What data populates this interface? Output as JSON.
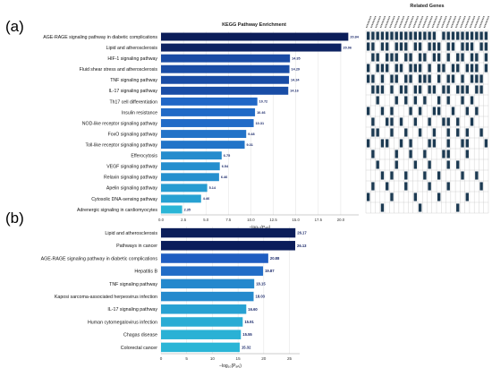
{
  "panel_labels": [
    "(a)",
    "(b)"
  ],
  "colors": {
    "bar_dark": "#0b1d59",
    "bar_mid": "#1f5fc4",
    "bar_light": "#2ab5d6",
    "heatmap_fill": "#1c3a52",
    "heatmap_grid": "#c8c8c8"
  },
  "chart_data": [
    {
      "type": "bar",
      "orientation": "horizontal",
      "title": "KEGG Pathway Enrichment",
      "xlabel": "−log₁₀(Pₐₙⱼ)",
      "xlim": [
        0,
        22
      ],
      "xticks": [
        "0.0",
        "2.5",
        "5.0",
        "7.5",
        "10.0",
        "12.5",
        "15.0",
        "17.5",
        "20.0"
      ],
      "tick_values": [
        0,
        2.5,
        5,
        7.5,
        10,
        12.5,
        15,
        17.5,
        20
      ],
      "grid": true,
      "categories": [
        "AGE-RAGE signaling pathway in diabetic complications",
        "Lipid and atherosclerosis",
        "HIF-1 signaling pathway",
        "Fluid shear stress and atherosclerosis",
        "TNF signaling pathway",
        "IL-17 signaling pathway",
        "Th17 cell differentiation",
        "Insulin resistance",
        "NOD-like receptor signaling pathway",
        "FoxO signaling pathway",
        "Toll-like receptor signaling pathway",
        "Efferocytosis",
        "VEGF signaling pathway",
        "Relaxin signaling pathway",
        "Apelin signaling pathway",
        "Cytosolic DNA-sensing pathway",
        "Adrenergic signaling in cardiomyocytes"
      ],
      "values": [
        20.84,
        20.06,
        14.35,
        14.29,
        14.24,
        14.16,
        10.72,
        10.46,
        10.31,
        9.48,
        9.31,
        6.75,
        6.54,
        6.46,
        5.14,
        4.46,
        2.35
      ],
      "labels": [
        "20.84",
        "20.06",
        "14.35",
        "14.29",
        "14.24",
        "14.16",
        "10.72",
        "10.46",
        "10.31",
        "9.48",
        "9.31",
        "6.75",
        "6.54",
        "6.46",
        "5.14",
        "4.46",
        "2.35"
      ]
    },
    {
      "type": "heatmap",
      "title": "Related Genes",
      "rows": 17,
      "columns": 26,
      "cells": [
        [
          1,
          1,
          1,
          1,
          1,
          1,
          1,
          1,
          1,
          1,
          1,
          1,
          1,
          1,
          1,
          0,
          1,
          1,
          1,
          1,
          1,
          1,
          1,
          1,
          1,
          1
        ],
        [
          1,
          1,
          0,
          1,
          1,
          0,
          1,
          1,
          1,
          0,
          1,
          1,
          0,
          1,
          1,
          1,
          0,
          1,
          1,
          0,
          1,
          1,
          1,
          0,
          1,
          1
        ],
        [
          0,
          1,
          1,
          0,
          1,
          1,
          1,
          0,
          1,
          1,
          0,
          1,
          1,
          0,
          1,
          1,
          0,
          1,
          0,
          1,
          1,
          0,
          1,
          1,
          0,
          1
        ],
        [
          1,
          0,
          1,
          1,
          1,
          0,
          1,
          1,
          0,
          1,
          1,
          1,
          0,
          1,
          0,
          1,
          1,
          0,
          1,
          1,
          0,
          1,
          1,
          1,
          0,
          1
        ],
        [
          1,
          1,
          0,
          1,
          0,
          1,
          1,
          0,
          1,
          1,
          0,
          1,
          1,
          1,
          0,
          1,
          0,
          1,
          1,
          0,
          1,
          0,
          1,
          1,
          1,
          0
        ],
        [
          0,
          1,
          1,
          1,
          0,
          1,
          0,
          1,
          1,
          0,
          1,
          1,
          0,
          1,
          1,
          0,
          1,
          1,
          0,
          1,
          1,
          1,
          0,
          1,
          1,
          0
        ],
        [
          0,
          0,
          1,
          0,
          0,
          0,
          1,
          0,
          1,
          0,
          1,
          0,
          1,
          0,
          0,
          1,
          0,
          1,
          0,
          0,
          1,
          0,
          1,
          0,
          0,
          0
        ],
        [
          1,
          0,
          0,
          1,
          0,
          1,
          0,
          0,
          0,
          1,
          0,
          1,
          0,
          0,
          1,
          1,
          0,
          0,
          1,
          0,
          0,
          1,
          0,
          1,
          0,
          0
        ],
        [
          0,
          1,
          0,
          0,
          1,
          1,
          0,
          1,
          0,
          0,
          1,
          0,
          0,
          1,
          0,
          0,
          1,
          1,
          0,
          1,
          0,
          0,
          1,
          0,
          0,
          0
        ],
        [
          0,
          1,
          1,
          0,
          0,
          1,
          0,
          0,
          1,
          0,
          0,
          1,
          0,
          0,
          1,
          0,
          0,
          1,
          0,
          1,
          0,
          1,
          0,
          0,
          1,
          0
        ],
        [
          1,
          0,
          0,
          1,
          1,
          0,
          0,
          1,
          0,
          1,
          0,
          0,
          0,
          1,
          1,
          0,
          0,
          1,
          0,
          0,
          1,
          1,
          0,
          0,
          0,
          1
        ],
        [
          0,
          1,
          0,
          0,
          0,
          0,
          1,
          0,
          0,
          1,
          0,
          0,
          1,
          0,
          0,
          0,
          1,
          1,
          0,
          0,
          0,
          1,
          0,
          0,
          0,
          0
        ],
        [
          0,
          0,
          1,
          0,
          0,
          0,
          1,
          0,
          0,
          0,
          1,
          0,
          0,
          1,
          0,
          0,
          0,
          1,
          0,
          1,
          0,
          0,
          0,
          0,
          0,
          0
        ],
        [
          0,
          0,
          0,
          1,
          0,
          1,
          0,
          0,
          1,
          0,
          0,
          0,
          1,
          0,
          0,
          1,
          0,
          0,
          0,
          0,
          1,
          0,
          0,
          1,
          0,
          0
        ],
        [
          0,
          1,
          0,
          0,
          1,
          0,
          0,
          0,
          1,
          0,
          0,
          0,
          0,
          1,
          0,
          0,
          0,
          1,
          0,
          0,
          0,
          0,
          0,
          0,
          1,
          0
        ],
        [
          1,
          0,
          0,
          0,
          0,
          1,
          0,
          0,
          0,
          0,
          1,
          0,
          0,
          0,
          0,
          1,
          0,
          0,
          0,
          0,
          0,
          1,
          0,
          0,
          0,
          0
        ],
        [
          0,
          0,
          0,
          1,
          0,
          0,
          0,
          0,
          0,
          0,
          0,
          1,
          0,
          0,
          0,
          0,
          0,
          0,
          0,
          1,
          0,
          0,
          0,
          0,
          0,
          0
        ]
      ]
    },
    {
      "type": "bar",
      "orientation": "horizontal",
      "xlabel": "−log₁₀(Pₐₙⱼ)",
      "xlim": [
        0,
        27
      ],
      "xticks": [
        "0",
        "5",
        "10",
        "15",
        "20",
        "25"
      ],
      "tick_values": [
        0,
        5,
        10,
        15,
        20,
        25
      ],
      "grid": true,
      "categories": [
        "Lipid and atherosclerosis",
        "Pathways in cancer",
        "AGE-RAGE signaling pathway in diabetic complications",
        "Hepatitis B",
        "TNF signaling pathway",
        "Kaposi sarcoma-associated herpesvirus infection",
        "IL-17 signaling pathway",
        "Human cytomegalovirus infection",
        "Chagas disease",
        "Colorectal cancer"
      ],
      "values": [
        26.17,
        26.13,
        20.88,
        19.87,
        18.15,
        18.03,
        16.6,
        15.91,
        15.55,
        15.32
      ],
      "labels": [
        "26.17",
        "26.13",
        "20.88",
        "19.87",
        "18.15",
        "18.03",
        "16.60",
        "15.91",
        "15.55",
        "15.32"
      ]
    }
  ]
}
